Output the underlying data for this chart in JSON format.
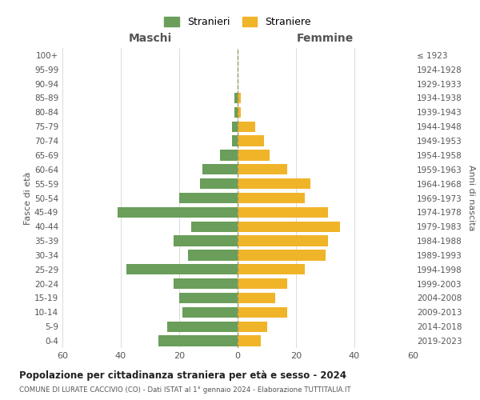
{
  "age_groups": [
    "0-4",
    "5-9",
    "10-14",
    "15-19",
    "20-24",
    "25-29",
    "30-34",
    "35-39",
    "40-44",
    "45-49",
    "50-54",
    "55-59",
    "60-64",
    "65-69",
    "70-74",
    "75-79",
    "80-84",
    "85-89",
    "90-94",
    "95-99",
    "100+"
  ],
  "birth_years": [
    "2019-2023",
    "2014-2018",
    "2009-2013",
    "2004-2008",
    "1999-2003",
    "1994-1998",
    "1989-1993",
    "1984-1988",
    "1979-1983",
    "1974-1978",
    "1969-1973",
    "1964-1968",
    "1959-1963",
    "1954-1958",
    "1949-1953",
    "1944-1948",
    "1939-1943",
    "1934-1938",
    "1929-1933",
    "1924-1928",
    "≤ 1923"
  ],
  "males": [
    27,
    24,
    19,
    20,
    22,
    38,
    17,
    22,
    16,
    41,
    20,
    13,
    12,
    6,
    2,
    2,
    1,
    1,
    0,
    0,
    0
  ],
  "females": [
    8,
    10,
    17,
    13,
    17,
    23,
    30,
    31,
    35,
    31,
    23,
    25,
    17,
    11,
    9,
    6,
    1,
    1,
    0,
    0,
    0
  ],
  "male_color": "#6a9e5a",
  "female_color": "#f0b429",
  "bar_height": 0.75,
  "title": "Popolazione per cittadinanza straniera per età e sesso - 2024",
  "subtitle": "COMUNE DI LURATE CACCIVIO (CO) - Dati ISTAT al 1° gennaio 2024 - Elaborazione TUTTITALIA.IT",
  "xlabel_left": "Maschi",
  "xlabel_right": "Femmine",
  "ylabel_left": "Fasce di età",
  "ylabel_right": "Anni di nascita",
  "legend_stranieri": "Stranieri",
  "legend_straniere": "Straniere",
  "xlim": 60,
  "background_color": "#ffffff",
  "grid_color": "#cccccc",
  "text_color": "#555555",
  "dashed_line_color": "#999966"
}
